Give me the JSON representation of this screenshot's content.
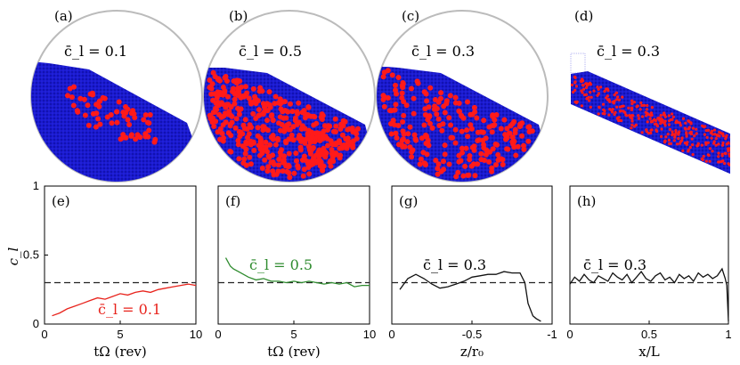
{
  "colors": {
    "bulk": "#1414c8",
    "tracer": "#ff1a1a",
    "drum": "#bbbbbb",
    "red_line": "#e8231c",
    "green_line": "#2e8b2e",
    "black_line": "#111111",
    "dashed": "#222222"
  },
  "snapshots": [
    {
      "label": "(a)",
      "annotation": "c̄_l = 0.1",
      "mean_fraction": 0.1
    },
    {
      "label": "(b)",
      "annotation": "c̄_l = 0.5",
      "mean_fraction": 0.5
    },
    {
      "label": "(c)",
      "annotation": "c̄_l = 0.3",
      "mean_fraction": 0.3
    },
    {
      "label": "(d)",
      "annotation": "c̄_l = 0.3",
      "mean_fraction": 0.3
    }
  ],
  "shared_ylabel": "c_l",
  "chart_data": [
    {
      "type": "line",
      "label": "(e)",
      "xlabel": "tΩ (rev)",
      "ylabel": "c_l",
      "xlim": [
        0,
        10
      ],
      "ylim": [
        0,
        1
      ],
      "xticks": [
        "0",
        "5",
        "10"
      ],
      "yticks": [
        "0",
        "0.5",
        "1"
      ],
      "reference_line": 0.3,
      "annotation": "c̄_l = 0.1",
      "color": "red_line",
      "x": [
        0.5,
        1,
        1.5,
        2,
        2.5,
        3,
        3.5,
        4,
        4.5,
        5,
        5.5,
        6,
        6.5,
        7,
        7.5,
        8,
        8.5,
        9,
        9.5,
        10
      ],
      "y": [
        0.06,
        0.08,
        0.11,
        0.13,
        0.15,
        0.17,
        0.19,
        0.18,
        0.2,
        0.22,
        0.21,
        0.23,
        0.24,
        0.23,
        0.25,
        0.26,
        0.27,
        0.28,
        0.29,
        0.28
      ]
    },
    {
      "type": "line",
      "label": "(f)",
      "xlabel": "tΩ (rev)",
      "ylabel": "",
      "xlim": [
        0,
        10
      ],
      "ylim": [
        0,
        1
      ],
      "xticks": [
        "0",
        "5",
        "10"
      ],
      "yticks": [],
      "reference_line": 0.3,
      "annotation": "c̄_l = 0.5",
      "color": "green_line",
      "x": [
        0.5,
        0.8,
        1,
        1.5,
        2,
        2.5,
        3,
        3.5,
        4,
        4.5,
        5,
        5.5,
        6,
        6.5,
        7,
        7.5,
        8,
        8.5,
        9,
        9.5,
        10
      ],
      "y": [
        0.48,
        0.42,
        0.4,
        0.37,
        0.34,
        0.32,
        0.33,
        0.31,
        0.31,
        0.3,
        0.31,
        0.3,
        0.31,
        0.3,
        0.29,
        0.3,
        0.29,
        0.3,
        0.27,
        0.28,
        0.28
      ]
    },
    {
      "type": "line",
      "label": "(g)",
      "xlabel": "z/r₀",
      "ylabel": "",
      "xlim": [
        0,
        -1
      ],
      "ylim": [
        0,
        1
      ],
      "xticks": [
        "0",
        "-0.5",
        "-1"
      ],
      "yticks": [],
      "reference_line": 0.3,
      "annotation": "c̄_l = 0.3",
      "color": "black_line",
      "x": [
        -0.05,
        -0.1,
        -0.15,
        -0.2,
        -0.25,
        -0.3,
        -0.35,
        -0.4,
        -0.45,
        -0.5,
        -0.55,
        -0.6,
        -0.65,
        -0.7,
        -0.75,
        -0.8,
        -0.83,
        -0.85,
        -0.88,
        -0.9,
        -0.93
      ],
      "y": [
        0.25,
        0.33,
        0.36,
        0.33,
        0.29,
        0.26,
        0.27,
        0.29,
        0.31,
        0.34,
        0.35,
        0.36,
        0.36,
        0.38,
        0.37,
        0.37,
        0.3,
        0.15,
        0.06,
        0.04,
        0.02
      ]
    },
    {
      "type": "line",
      "label": "(h)",
      "xlabel": "x/L",
      "ylabel": "",
      "xlim": [
        0,
        1
      ],
      "ylim": [
        0,
        1
      ],
      "xticks": [
        "0",
        "0.5",
        "1"
      ],
      "yticks": [],
      "reference_line": 0.3,
      "annotation": "c̄_l = 0.3",
      "color": "black_line",
      "x": [
        0,
        0.03,
        0.06,
        0.09,
        0.12,
        0.15,
        0.18,
        0.21,
        0.24,
        0.27,
        0.3,
        0.33,
        0.36,
        0.39,
        0.42,
        0.45,
        0.48,
        0.51,
        0.54,
        0.57,
        0.6,
        0.63,
        0.66,
        0.69,
        0.72,
        0.75,
        0.78,
        0.81,
        0.84,
        0.87,
        0.9,
        0.93,
        0.96,
        0.98,
        0.99,
        1.0
      ],
      "y": [
        0.29,
        0.34,
        0.31,
        0.36,
        0.32,
        0.3,
        0.35,
        0.33,
        0.31,
        0.37,
        0.34,
        0.32,
        0.36,
        0.3,
        0.34,
        0.38,
        0.33,
        0.31,
        0.35,
        0.37,
        0.32,
        0.34,
        0.3,
        0.36,
        0.33,
        0.35,
        0.31,
        0.37,
        0.34,
        0.36,
        0.33,
        0.35,
        0.4,
        0.33,
        0.28,
        0.02
      ]
    }
  ]
}
